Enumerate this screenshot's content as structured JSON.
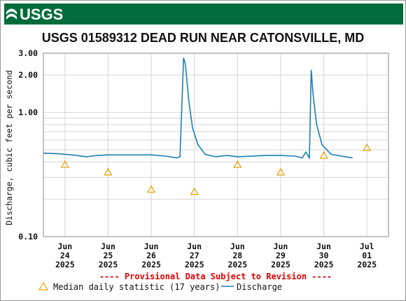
{
  "banner": {
    "logo_text": "USGS",
    "color": "#006c3b"
  },
  "chart_data": {
    "type": "line",
    "title": "USGS 01589312 DEAD RUN NEAR CATONSVILLE, MD",
    "ylabel": "Discharge, cubic feet per second",
    "yscale": "log",
    "ylim": [
      0.1,
      3.0
    ],
    "y_tick_labels": [
      {
        "value": 3.0,
        "label": "3.00"
      },
      {
        "value": 2.0,
        "label": "2.00"
      },
      {
        "value": 1.0,
        "label": "1.00"
      },
      {
        "value": 0.1,
        "label": "0.10"
      }
    ],
    "xlim": [
      "2025-06-23T12:00",
      "2025-07-01T12:00"
    ],
    "x_ticks": [
      {
        "date": "2025-06-24",
        "label": [
          "Jun",
          "24",
          "2025"
        ]
      },
      {
        "date": "2025-06-25",
        "label": [
          "Jun",
          "25",
          "2025"
        ]
      },
      {
        "date": "2025-06-26",
        "label": [
          "Jun",
          "26",
          "2025"
        ]
      },
      {
        "date": "2025-06-27",
        "label": [
          "Jun",
          "27",
          "2025"
        ]
      },
      {
        "date": "2025-06-28",
        "label": [
          "Jun",
          "28",
          "2025"
        ]
      },
      {
        "date": "2025-06-29",
        "label": [
          "Jun",
          "29",
          "2025"
        ]
      },
      {
        "date": "2025-06-30",
        "label": [
          "Jun",
          "30",
          "2025"
        ]
      },
      {
        "date": "2025-07-01",
        "label": [
          "Jul",
          "01",
          "2025"
        ]
      }
    ],
    "grid": true,
    "annotation": "---- Provisional Data Subject to Revision ----",
    "legend": {
      "placement": "bottom"
    },
    "series": [
      {
        "name": "Median daily statistic (17 years)",
        "type": "scatter",
        "marker": "triangle",
        "color": "#e8a000",
        "points": [
          {
            "x": "2025-06-24T00:00",
            "y": 0.38
          },
          {
            "x": "2025-06-25T00:00",
            "y": 0.33
          },
          {
            "x": "2025-06-26T00:00",
            "y": 0.24
          },
          {
            "x": "2025-06-27T00:00",
            "y": 0.23
          },
          {
            "x": "2025-06-28T00:00",
            "y": 0.38
          },
          {
            "x": "2025-06-29T00:00",
            "y": 0.33
          },
          {
            "x": "2025-06-30T00:00",
            "y": 0.45
          },
          {
            "x": "2025-07-01T00:00",
            "y": 0.52
          }
        ]
      },
      {
        "name": "Discharge",
        "type": "line",
        "color": "#1a7fb5",
        "points": [
          {
            "x": "2025-06-23T12:00",
            "y": 0.47
          },
          {
            "x": "2025-06-23T20:00",
            "y": 0.465
          },
          {
            "x": "2025-06-24T04:00",
            "y": 0.455
          },
          {
            "x": "2025-06-24T12:00",
            "y": 0.44
          },
          {
            "x": "2025-06-24T18:00",
            "y": 0.45
          },
          {
            "x": "2025-06-25T00:00",
            "y": 0.455
          },
          {
            "x": "2025-06-25T12:00",
            "y": 0.455
          },
          {
            "x": "2025-06-26T00:00",
            "y": 0.455
          },
          {
            "x": "2025-06-26T08:00",
            "y": 0.445
          },
          {
            "x": "2025-06-26T14:00",
            "y": 0.43
          },
          {
            "x": "2025-06-26T16:00",
            "y": 0.44
          },
          {
            "x": "2025-06-26T18:00",
            "y": 2.75
          },
          {
            "x": "2025-06-26T19:00",
            "y": 2.45
          },
          {
            "x": "2025-06-26T21:00",
            "y": 1.2
          },
          {
            "x": "2025-06-26T23:00",
            "y": 0.75
          },
          {
            "x": "2025-06-27T02:00",
            "y": 0.55
          },
          {
            "x": "2025-06-27T06:00",
            "y": 0.46
          },
          {
            "x": "2025-06-27T12:00",
            "y": 0.44
          },
          {
            "x": "2025-06-27T18:00",
            "y": 0.45
          },
          {
            "x": "2025-06-28T00:00",
            "y": 0.44
          },
          {
            "x": "2025-06-27T23:59",
            "y": 0.44
          },
          {
            "x": "2025-06-28T16:00",
            "y": 0.45
          },
          {
            "x": "2025-06-29T00:00",
            "y": 0.45
          },
          {
            "x": "2025-06-29T08:00",
            "y": 0.445
          },
          {
            "x": "2025-06-29T12:00",
            "y": 0.43
          },
          {
            "x": "2025-06-29T14:00",
            "y": 0.48
          },
          {
            "x": "2025-06-29T16:00",
            "y": 0.43
          },
          {
            "x": "2025-06-29T17:00",
            "y": 2.2
          },
          {
            "x": "2025-06-29T18:00",
            "y": 1.4
          },
          {
            "x": "2025-06-29T20:00",
            "y": 0.8
          },
          {
            "x": "2025-06-29T23:00",
            "y": 0.55
          },
          {
            "x": "2025-06-30T04:00",
            "y": 0.46
          },
          {
            "x": "2025-06-30T12:00",
            "y": 0.44
          },
          {
            "x": "2025-06-30T16:00",
            "y": 0.43
          }
        ]
      }
    ]
  }
}
